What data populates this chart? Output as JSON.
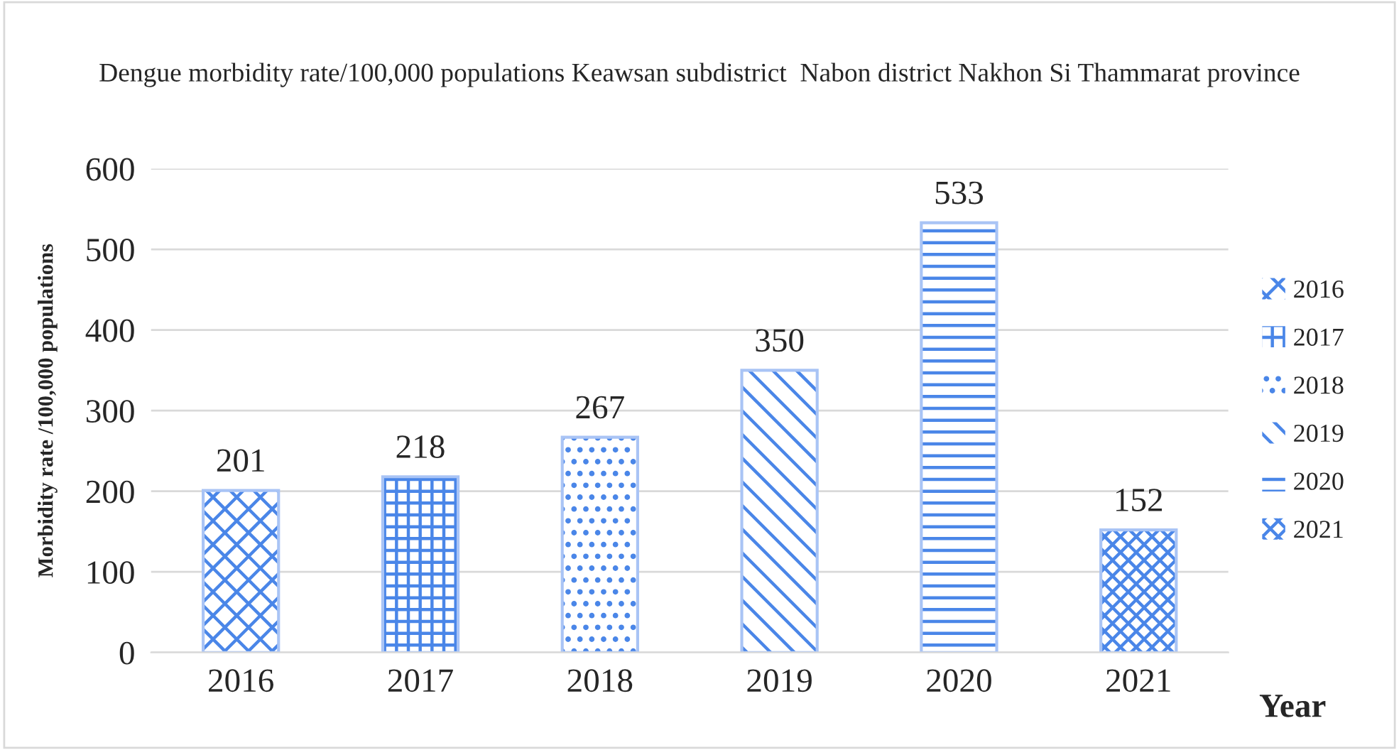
{
  "chart_data": {
    "type": "bar",
    "title": "Dengue morbidity rate/100,000 populations Keawsan subdistrict  Nabon district Nakhon Si Thammarat province",
    "xlabel": "Year",
    "ylabel": "Morbidity rate /100,000 populations",
    "categories": [
      "2016",
      "2017",
      "2018",
      "2019",
      "2020",
      "2021"
    ],
    "series": [
      {
        "name": "2016",
        "color": "#4a86e8",
        "values": [
          201,
          null,
          null,
          null,
          null,
          null
        ]
      },
      {
        "name": "2017",
        "color": "#4a86e8",
        "values": [
          null,
          218,
          null,
          null,
          null,
          null
        ]
      },
      {
        "name": "2018",
        "color": "#4a86e8",
        "values": [
          null,
          null,
          267,
          null,
          null,
          null
        ]
      },
      {
        "name": "2019",
        "color": "#4a86e8",
        "values": [
          null,
          null,
          null,
          350,
          null,
          null
        ]
      },
      {
        "name": "2020",
        "color": "#4a86e8",
        "values": [
          null,
          null,
          null,
          null,
          533,
          null
        ]
      },
      {
        "name": "2021",
        "color": "#4a86e8",
        "values": [
          null,
          null,
          null,
          null,
          null,
          152
        ]
      }
    ],
    "ylim": [
      0,
      600
    ],
    "yticks": [
      0,
      100,
      200,
      300,
      400,
      500,
      600
    ],
    "grid": "y",
    "legend": "right",
    "data_labels": true
  }
}
